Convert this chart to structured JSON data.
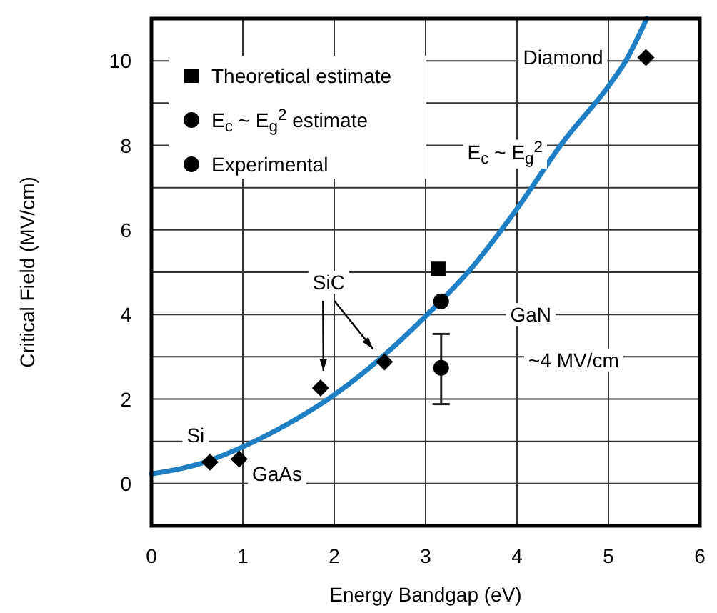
{
  "chart_data": {
    "type": "scatter",
    "xlabel": "Energy Bandgap (eV)",
    "ylabel": "Critical Field (MV/cm)",
    "xlim": [
      0,
      6
    ],
    "ylim": [
      -1,
      11
    ],
    "xticks": [
      0,
      1,
      2,
      3,
      4,
      5,
      6
    ],
    "yticks": [
      0,
      {
        "value": 1,
        "label": null
      },
      2,
      {
        "value": 3,
        "label": null
      },
      4,
      {
        "value": 5,
        "label": null
      },
      6,
      {
        "value": 7,
        "label": null
      },
      8,
      {
        "value": 9,
        "label": null
      },
      10
    ],
    "grid": true,
    "legend": "top left",
    "series": [
      {
        "type": "line",
        "name": "E$_{c}$ ~ E$_{g}$$^{2}$",
        "color": "#1f7fc4",
        "marker": "none",
        "line_style": "solid",
        "x": [
          0,
          0.5,
          1,
          1.5,
          2,
          2.5,
          3,
          3.5,
          4,
          4.5,
          5,
          5.19,
          5.42
        ],
        "values": [
          0.23,
          0.45,
          0.87,
          1.42,
          2.1,
          2.95,
          3.96,
          5.09,
          6.5,
          8.07,
          9.4,
          10,
          11
        ]
      },
      {
        "color": "#000000",
        "marker": "diamond",
        "x": [
          0.64,
          0.96,
          1.85,
          2.55,
          5.41
        ],
        "values": [
          0.51,
          0.58,
          2.26,
          2.88,
          10.08
        ]
      },
      {
        "name": "Theoretical estimate",
        "color": "#000000",
        "marker": "square",
        "x": [
          3.14
        ],
        "values": [
          5.08
        ]
      },
      {
        "name": "E$_{c}$ ~ E$_{g}$$^{2}$ estimate",
        "color": "#000000",
        "marker": "circle",
        "x": [
          3.17
        ],
        "values": [
          4.31
        ]
      },
      {
        "name": "Experimental",
        "color": "#000000",
        "marker": "circle",
        "x": [
          3.17
        ],
        "values": [
          2.74
        ],
        "errors": [
          [
            1.88,
            3.54
          ]
        ]
      }
    ],
    "annotations": [
      {
        "text": "Si",
        "x": 0.64,
        "y": 0.51
      },
      {
        "text": "GaAs",
        "x": 0.96,
        "y": 0.58
      },
      {
        "text": "SiC",
        "x": 1.94,
        "y": 4.76
      },
      {
        "text": "GaN",
        "x": 4.15,
        "y": 4.0
      },
      "~4 MV/cm",
      {
        "text": "Diamond",
        "x": 5.41,
        "y": 10.08
      }
    ]
  }
}
